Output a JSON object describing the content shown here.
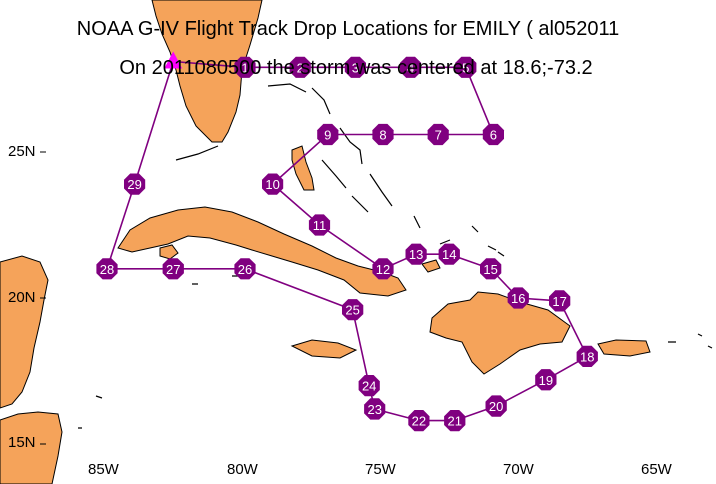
{
  "title": "NOAA G-IV Flight Track Drop Locations for EMILY ( al052011",
  "subtitle": "On 2011080500 the storm was centered at 18.6;-73.2",
  "axes": {
    "lat_labels": [
      "25N",
      "20N",
      "15N"
    ],
    "lon_labels": [
      "85W",
      "80W",
      "75W",
      "70W",
      "65W"
    ]
  },
  "colors": {
    "land": "#f5a35a",
    "water": "#ffffff",
    "coast": "#000000",
    "track": "#800080",
    "drop_marker": "#800080",
    "drop_label": "#ffffff",
    "start_marker": "#ff00ff"
  },
  "legend": [],
  "chart_data": {
    "type": "map-track",
    "title": "NOAA G-IV Flight Track Drop Locations for EMILY ( al052011",
    "storm_center": {
      "lat": 18.6,
      "lon": -73.2,
      "time": "2011080500"
    },
    "lon_range": [
      -88,
      -63
    ],
    "lat_range": [
      14.5,
      28.5
    ],
    "start_point": {
      "lat": 28.1,
      "lon": -82.6,
      "symbol": "triangle"
    },
    "drops": [
      {
        "label": "1",
        "lat": 27.9,
        "lon": -80.0
      },
      {
        "label": "2",
        "lat": 27.9,
        "lon": -78.0
      },
      {
        "label": "3",
        "lat": 27.9,
        "lon": -76.0
      },
      {
        "label": "4",
        "lat": 27.9,
        "lon": -74.0
      },
      {
        "label": "5",
        "lat": 27.9,
        "lon": -72.0
      },
      {
        "label": "6",
        "lat": 25.6,
        "lon": -71.0
      },
      {
        "label": "7",
        "lat": 25.6,
        "lon": -73.0
      },
      {
        "label": "8",
        "lat": 25.6,
        "lon": -75.0
      },
      {
        "label": "9",
        "lat": 25.6,
        "lon": -77.0
      },
      {
        "label": "10",
        "lat": 23.9,
        "lon": -79.0
      },
      {
        "label": "11",
        "lat": 22.5,
        "lon": -77.3
      },
      {
        "label": "12",
        "lat": 21.0,
        "lon": -75.0
      },
      {
        "label": "13",
        "lat": 21.5,
        "lon": -73.8
      },
      {
        "label": "14",
        "lat": 21.5,
        "lon": -72.6
      },
      {
        "label": "15",
        "lat": 21.0,
        "lon": -71.1
      },
      {
        "label": "16",
        "lat": 20.0,
        "lon": -70.1
      },
      {
        "label": "17",
        "lat": 19.9,
        "lon": -68.6
      },
      {
        "label": "18",
        "lat": 18.0,
        "lon": -67.6
      },
      {
        "label": "19",
        "lat": 17.2,
        "lon": -69.1
      },
      {
        "label": "20",
        "lat": 16.3,
        "lon": -70.9
      },
      {
        "label": "21",
        "lat": 15.8,
        "lon": -72.4
      },
      {
        "label": "22",
        "lat": 15.8,
        "lon": -73.7
      },
      {
        "label": "23",
        "lat": 16.2,
        "lon": -75.3
      },
      {
        "label": "24",
        "lat": 17.0,
        "lon": -75.5
      },
      {
        "label": "25",
        "lat": 19.6,
        "lon": -76.1
      },
      {
        "label": "26",
        "lat": 21.0,
        "lon": -80.0
      },
      {
        "label": "27",
        "lat": 21.0,
        "lon": -82.6
      },
      {
        "label": "28",
        "lat": 21.0,
        "lon": -85.0
      },
      {
        "label": "29",
        "lat": 23.9,
        "lon": -84.0
      }
    ]
  }
}
